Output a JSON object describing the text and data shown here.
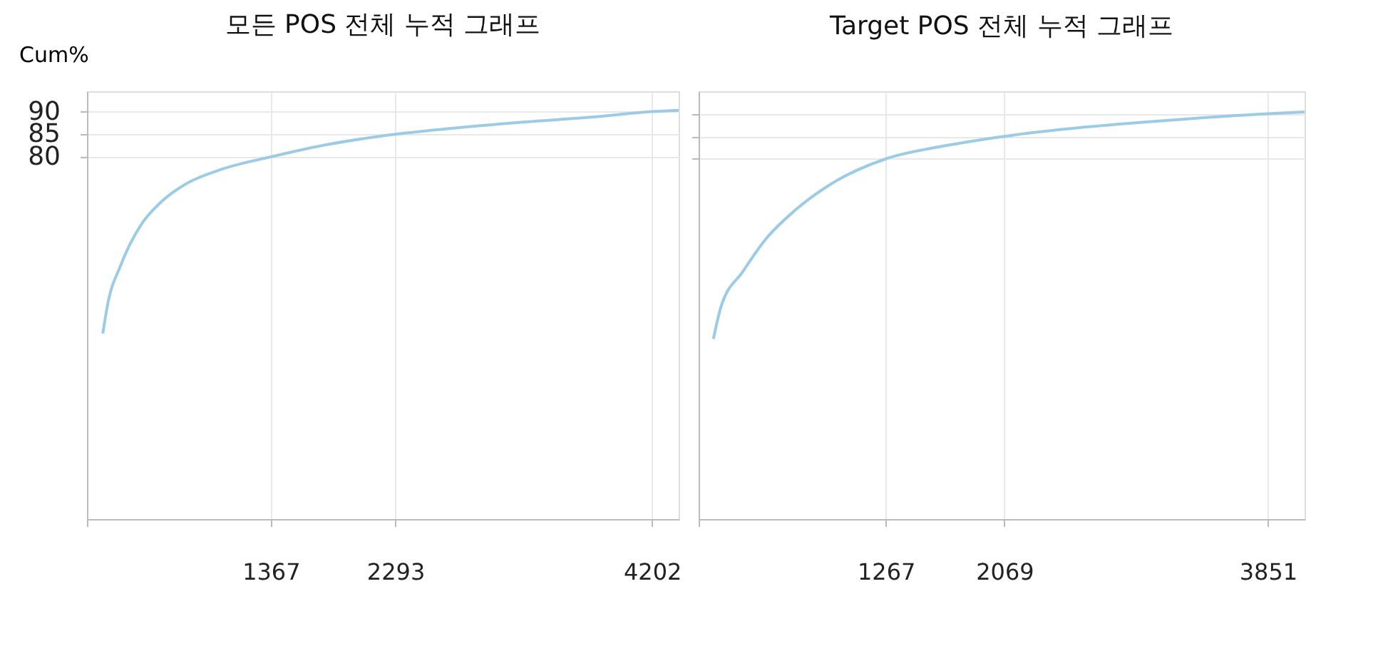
{
  "chart_data": [
    {
      "type": "line",
      "title": "모든 POS  전체 누적 그래프",
      "ylabel": "Cum%",
      "x": [
        118,
        151,
        250,
        402,
        550,
        734,
        1005,
        1367,
        1800,
        2293,
        2744,
        3300,
        3800,
        4202,
        4400
      ],
      "series": [
        {
          "color": "#9ccbe6",
          "values": [
            41,
            47,
            56,
            65,
            70,
            74,
            77.3,
            80,
            82.8,
            85,
            86.4,
            87.8,
            88.9,
            90,
            90.3
          ]
        }
      ],
      "xlim": [
        0,
        4400
      ],
      "xticks": [
        {
          "value": 0,
          "label": null
        },
        1367,
        2293,
        4202
      ],
      "ylim": [
        0,
        94.5
      ],
      "yticks": [
        80,
        85,
        90
      ],
      "grid": true,
      "line_style": "solid",
      "marker": "none"
    },
    {
      "type": "line",
      "title": "Target POS  전체 누적 그래프",
      "x": [
        100,
        150,
        300,
        450,
        650,
        900,
        1267,
        1650,
        2069,
        2600,
        3200,
        3851,
        4100
      ],
      "series": [
        {
          "color": "#9ccbe6",
          "values": [
            40,
            47,
            55,
            62,
            68.5,
            74.5,
            80,
            82.8,
            85,
            87,
            88.6,
            90,
            90.4
          ]
        }
      ],
      "xlim": [
        0,
        4100
      ],
      "xticks": [
        {
          "value": 0,
          "label": null
        },
        1267,
        2069,
        3851
      ],
      "ylim": [
        0,
        95
      ],
      "yticks": [
        80,
        85,
        90
      ],
      "grid": true,
      "tick_labels": "x",
      "line_style": "solid",
      "marker": "none"
    }
  ]
}
